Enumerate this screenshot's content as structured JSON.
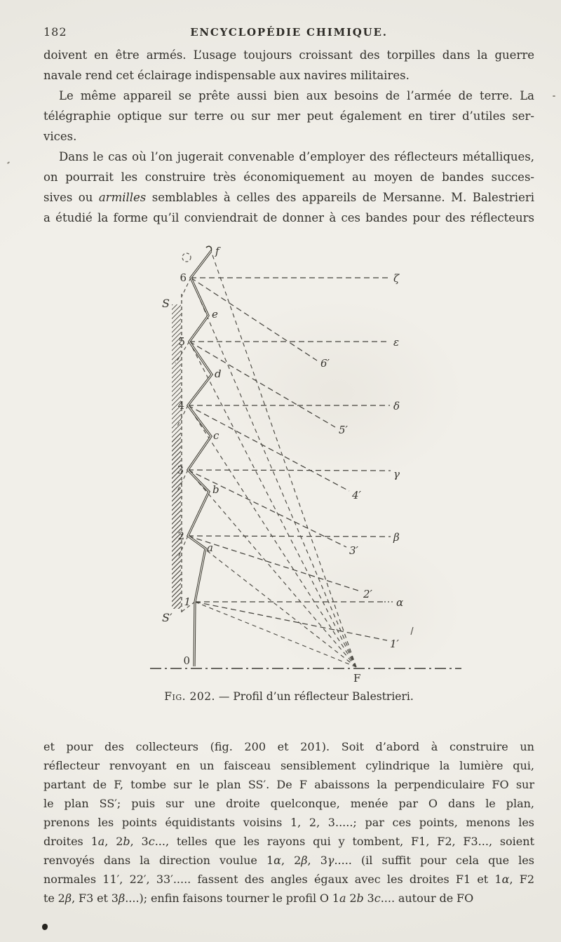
{
  "header": {
    "page_number": "182",
    "running_title": "ENCYCLOPÉDIE CHIMIQUE."
  },
  "body_top": {
    "lines": [
      {
        "fill": true,
        "indent": false,
        "seg": [
          {
            "t": "doivent en être armés. L’usage toujours croissant des torpilles dans la guerre"
          }
        ]
      },
      {
        "fill": false,
        "indent": false,
        "seg": [
          {
            "t": "navale rend cet éclairage indispensable aux navires militaires."
          }
        ]
      },
      {
        "fill": true,
        "indent": true,
        "seg": [
          {
            "t": "Le même appareil se prête aussi bien aux besoins de l’armée de terre. La"
          }
        ]
      },
      {
        "fill": true,
        "indent": false,
        "seg": [
          {
            "t": "télégraphie optique sur terre ou sur mer peut également en tirer d’utiles ser-"
          }
        ]
      },
      {
        "fill": false,
        "indent": false,
        "seg": [
          {
            "t": "vices."
          }
        ]
      },
      {
        "fill": true,
        "indent": true,
        "seg": [
          {
            "t": "Dans le cas où l’on jugerait convenable d’employer des réflecteurs métalliques,"
          }
        ]
      },
      {
        "fill": true,
        "indent": false,
        "seg": [
          {
            "t": "on pourrait les construire très économiquement au moyen de bandes succes-"
          }
        ]
      },
      {
        "fill": true,
        "indent": false,
        "seg": [
          {
            "t": "sives ou "
          },
          {
            "t": "armilles",
            "i": true
          },
          {
            "t": " semblables à celles des appareils de Mersanne. M. Balestrieri"
          }
        ]
      },
      {
        "fill": true,
        "indent": false,
        "seg": [
          {
            "t": "a étudié la forme qu’il conviendrait de donner à ces bandes pour des réflecteurs"
          }
        ]
      }
    ]
  },
  "figure": {
    "caption_label": "Fig. 202.",
    "caption_rest": " — Profil d’un réflecteur Balestrieri.",
    "labels": {
      "d0": "0",
      "d1": "1",
      "d2": "2",
      "d3": "3",
      "d4": "4",
      "d5": "5",
      "d6": "6",
      "fa": "a",
      "fb": "b",
      "fc": "c",
      "fd": "d",
      "fe": "e",
      "ff": "f",
      "n1": "1′",
      "n2": "2′",
      "n3": "3′",
      "n4": "4′",
      "n5": "5′",
      "n6": "6′",
      "g_alpha": "α",
      "g_beta": "β",
      "g_gamma": "γ",
      "g_delta": "δ",
      "g_epsilon": "ε",
      "g_zeta": "ζ",
      "S": "S",
      "S_prime": "S′",
      "F": "F"
    }
  },
  "body_bottom": {
    "lines": [
      {
        "fill": true,
        "indent": false,
        "seg": [
          {
            "t": "et pour des collecteurs (fig. 200 et 201). Soit d’abord à construire un"
          }
        ]
      },
      {
        "fill": true,
        "indent": false,
        "seg": [
          {
            "t": "réflecteur renvoyant en un faisceau sensiblement cylindrique la lumière qui,"
          }
        ]
      },
      {
        "fill": true,
        "indent": false,
        "seg": [
          {
            "t": "partant de F, tombe sur le plan SS′. De F abaissons la perpendiculaire FO sur"
          }
        ]
      },
      {
        "fill": true,
        "indent": false,
        "seg": [
          {
            "t": "le plan SS′; puis sur une droite quelconque, menée par O dans le plan,"
          }
        ]
      },
      {
        "fill": true,
        "indent": false,
        "seg": [
          {
            "t": "prenons les points équidistants voisins 1, 2, 3.....; par ces points, menons les"
          }
        ]
      },
      {
        "fill": true,
        "indent": false,
        "seg": [
          {
            "t": "droites 1"
          },
          {
            "t": "a",
            "i": true
          },
          {
            "t": ", 2"
          },
          {
            "t": "b",
            "i": true
          },
          {
            "t": ", 3"
          },
          {
            "t": "c",
            "i": true
          },
          {
            "t": "..., telles que les rayons qui y tombent, F1, F2, F3..., soient"
          }
        ]
      },
      {
        "fill": true,
        "indent": false,
        "seg": [
          {
            "t": "renvoyés dans la direction voulue 1"
          },
          {
            "t": "α",
            "i": true
          },
          {
            "t": ", 2"
          },
          {
            "t": "β",
            "i": true
          },
          {
            "t": ", 3"
          },
          {
            "t": "γ",
            "i": true
          },
          {
            "t": "..... (il suffit pour cela que les"
          }
        ]
      },
      {
        "fill": true,
        "indent": false,
        "seg": [
          {
            "t": "normales 11′, 22′, 33′..... fassent des angles égaux avec les droites F1 et 1"
          },
          {
            "t": "α",
            "i": true
          },
          {
            "t": ", F2"
          }
        ]
      },
      {
        "fill": false,
        "indent": false,
        "seg": [
          {
            "t": "te 2"
          },
          {
            "t": "β",
            "i": true
          },
          {
            "t": ", F3 et 3"
          },
          {
            "t": "β",
            "i": true
          },
          {
            "t": "....); enfin faisons tourner le profil O 1"
          },
          {
            "t": "a",
            "i": true
          },
          {
            "t": " 2"
          },
          {
            "t": "b",
            "i": true
          },
          {
            "t": " 3"
          },
          {
            "t": "c",
            "i": true
          },
          {
            "t": ".... autour de FO"
          }
        ]
      }
    ]
  },
  "colors": {
    "paper": "#efede7",
    "ink": "#312f2a"
  }
}
